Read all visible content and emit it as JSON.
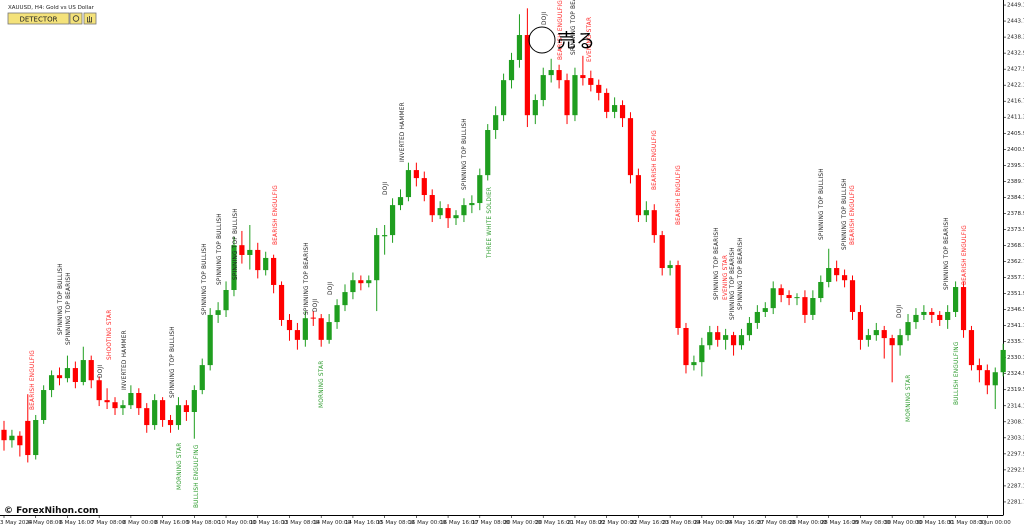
{
  "chart_data": {
    "type": "candlestick",
    "symbol": "XAUUSD, H4:  Gold vs US Dollar",
    "button_label": "DETECTOR",
    "watermark": "© ForexNihon.com",
    "signal_label": "売る",
    "up_color": "#1f9e1f",
    "down_color": "#ff0000",
    "ylim": [
      2277.3,
      2450.8
    ],
    "yticks": [
      {
        "value": 2449.1,
        "label": "2449.10"
      },
      {
        "value": 2443.7,
        "label": "2443.70"
      },
      {
        "value": 2438.3,
        "label": "2438.30"
      },
      {
        "value": 2432.9,
        "label": "2432.90"
      },
      {
        "value": 2427.5,
        "label": "2427.50"
      },
      {
        "value": 2422.1,
        "label": "2422.10"
      },
      {
        "value": 2416.7,
        "label": "2416.70"
      },
      {
        "value": 2411.3,
        "label": "2411.30"
      },
      {
        "value": 2405.9,
        "label": "2405.90"
      },
      {
        "value": 2400.5,
        "label": "2400.50"
      },
      {
        "value": 2395.1,
        "label": "2395.10"
      },
      {
        "value": 2389.7,
        "label": "2389.70"
      },
      {
        "value": 2384.3,
        "label": "2384.30"
      },
      {
        "value": 2378.9,
        "label": "2378.90"
      },
      {
        "value": 2373.5,
        "label": "2373.50"
      },
      {
        "value": 2368.1,
        "label": "2368.10"
      },
      {
        "value": 2362.7,
        "label": "2362.70"
      },
      {
        "value": 2357.3,
        "label": "2357.30"
      },
      {
        "value": 2351.9,
        "label": "2351.90"
      },
      {
        "value": 2346.5,
        "label": "2346.50"
      },
      {
        "value": 2341.1,
        "label": "2341.10"
      },
      {
        "value": 2335.7,
        "label": "2335.70"
      },
      {
        "value": 2330.3,
        "label": "2330.30"
      },
      {
        "value": 2324.9,
        "label": "2324.90"
      },
      {
        "value": 2319.5,
        "label": "2319.50"
      },
      {
        "value": 2314.1,
        "label": "2314.10"
      },
      {
        "value": 2308.7,
        "label": "2308.70"
      },
      {
        "value": 2303.3,
        "label": "2303.30"
      },
      {
        "value": 2297.9,
        "label": "2297.90"
      },
      {
        "value": 2292.5,
        "label": "2292.50"
      },
      {
        "value": 2287.1,
        "label": "2287.10"
      },
      {
        "value": 2281.7,
        "label": "2281.70"
      }
    ],
    "time_labels": [
      "3 May 2024",
      "6 May 08:00",
      "6 May 16:00",
      "7 May 08:00",
      "8 May 00:00",
      "8 May 16:00",
      "9 May 08:00",
      "10 May 00:00",
      "10 May 16:00",
      "13 May 08:00",
      "14 May 00:00",
      "14 May 16:00",
      "15 May 08:00",
      "16 May 00:00",
      "16 May 16:00",
      "17 May 08:00",
      "20 May 00:00",
      "20 May 16:00",
      "21 May 08:00",
      "22 May 00:00",
      "22 May 16:00",
      "23 May 08:00",
      "24 May 00:00",
      "24 May 16:00",
      "27 May 08:00",
      "28 May 00:00",
      "28 May 16:00",
      "29 May 08:00",
      "30 May 00:00",
      "30 May 16:00",
      "31 May 08:00",
      "3 Jun 00:00"
    ],
    "ohlc": [
      [
        2306,
        2309,
        2299,
        2302.5
      ],
      [
        2302.5,
        2306,
        2300,
        2304
      ],
      [
        2304,
        2305.5,
        2297,
        2300.8
      ],
      [
        2309,
        2318,
        2295,
        2297.5
      ],
      [
        2297.5,
        2311,
        2296,
        2309.3
      ],
      [
        2309.3,
        2321,
        2308,
        2319.4
      ],
      [
        2319.4,
        2326,
        2317,
        2324.4
      ],
      [
        2324.4,
        2327,
        2321,
        2323.4
      ],
      [
        2323.4,
        2331,
        2322,
        2326.8
      ],
      [
        2326.8,
        2329,
        2320,
        2322.1
      ],
      [
        2322.1,
        2334,
        2321,
        2329.5
      ],
      [
        2329.5,
        2331,
        2320,
        2322.7
      ],
      [
        2322.7,
        2324,
        2314,
        2316
      ],
      [
        2316,
        2320,
        2313,
        2315.3
      ],
      [
        2315.3,
        2317,
        2311,
        2313.3
      ],
      [
        2313.3,
        2316,
        2311,
        2314.3
      ],
      [
        2314.3,
        2321,
        2313,
        2318.4
      ],
      [
        2318.4,
        2320,
        2311,
        2313.3
      ],
      [
        2313.3,
        2315,
        2305,
        2307.6
      ],
      [
        2307.6,
        2318,
        2306,
        2316
      ],
      [
        2316,
        2317,
        2307,
        2309.3
      ],
      [
        2309.3,
        2311,
        2305,
        2307.6
      ],
      [
        2307.6,
        2317,
        2306,
        2314.3
      ],
      [
        2314.3,
        2316,
        2309,
        2312
      ],
      [
        2312,
        2321,
        2303,
        2319.4
      ],
      [
        2319.4,
        2330,
        2318,
        2327.8
      ],
      [
        2327.8,
        2347,
        2326,
        2344.7
      ],
      [
        2344.7,
        2349,
        2342,
        2346.3
      ],
      [
        2346.3,
        2356,
        2344,
        2353.1
      ],
      [
        2353.1,
        2371,
        2351,
        2368.2
      ],
      [
        2368.2,
        2373,
        2362,
        2364.9
      ],
      [
        2364.9,
        2375,
        2360,
        2366.6
      ],
      [
        2366.6,
        2369,
        2357,
        2359.8
      ],
      [
        2359.8,
        2366,
        2358,
        2363.9
      ],
      [
        2363.9,
        2365,
        2352,
        2354.8
      ],
      [
        2354.8,
        2356,
        2341,
        2343
      ],
      [
        2343,
        2345,
        2336,
        2339.6
      ],
      [
        2339.6,
        2342,
        2333,
        2336.3
      ],
      [
        2336.3,
        2346,
        2334,
        2343.6
      ],
      [
        2343.8,
        2346,
        2341,
        2343.6
      ],
      [
        2343.6,
        2345,
        2334,
        2336.3
      ],
      [
        2336.3,
        2345,
        2335,
        2342.3
      ],
      [
        2342.3,
        2350,
        2340,
        2348
      ],
      [
        2348,
        2355,
        2346,
        2352.4
      ],
      [
        2352.4,
        2359,
        2350,
        2356.4
      ],
      [
        2356.4,
        2358,
        2353,
        2355.4
      ],
      [
        2355.4,
        2358,
        2354,
        2356.4
      ],
      [
        2356.4,
        2374,
        2346,
        2371.6
      ],
      [
        2371.2,
        2375,
        2365,
        2371.6
      ],
      [
        2371.6,
        2384,
        2369,
        2381.7
      ],
      [
        2381.7,
        2387,
        2380,
        2384.4
      ],
      [
        2384.4,
        2396,
        2383,
        2393.5
      ],
      [
        2393.5,
        2396,
        2388,
        2390.8
      ],
      [
        2390.8,
        2393,
        2383,
        2385.1
      ],
      [
        2385.1,
        2387,
        2376,
        2378.3
      ],
      [
        2378.3,
        2383,
        2377,
        2380.7
      ],
      [
        2380.7,
        2382,
        2374,
        2377.3
      ],
      [
        2377.3,
        2380,
        2375,
        2378.3
      ],
      [
        2378.3,
        2384,
        2376,
        2381.7
      ],
      [
        2381.7,
        2385,
        2379,
        2382.4
      ],
      [
        2382.4,
        2394,
        2380,
        2391.8
      ],
      [
        2391.8,
        2409,
        2390,
        2407
      ],
      [
        2407,
        2415,
        2404,
        2412
      ],
      [
        2412,
        2426,
        2410,
        2423.8
      ],
      [
        2423.8,
        2433,
        2421,
        2430.6
      ],
      [
        2430.6,
        2446,
        2428,
        2439
      ],
      [
        2439,
        2448,
        2408,
        2412
      ],
      [
        2412,
        2419,
        2409,
        2417.1
      ],
      [
        2417.1,
        2428,
        2415,
        2425.5
      ],
      [
        2425.5,
        2431,
        2423,
        2427.2
      ],
      [
        2427.2,
        2429,
        2421,
        2423.8
      ],
      [
        2423.8,
        2426,
        2409,
        2412
      ],
      [
        2412,
        2428,
        2410,
        2425.5
      ],
      [
        2425.5,
        2432,
        2422,
        2424.5
      ],
      [
        2424.5,
        2427,
        2420,
        2422.2
      ],
      [
        2422.2,
        2424,
        2417,
        2419.5
      ],
      [
        2419.5,
        2421,
        2411,
        2413.1
      ],
      [
        2413.1,
        2418,
        2411,
        2415.4
      ],
      [
        2415.4,
        2417,
        2408,
        2411
      ],
      [
        2411,
        2413,
        2389,
        2391.8
      ],
      [
        2391.8,
        2394,
        2376,
        2378.3
      ],
      [
        2378.3,
        2383,
        2376,
        2380
      ],
      [
        2380,
        2382,
        2369,
        2371.6
      ],
      [
        2371.6,
        2373,
        2358,
        2360.5
      ],
      [
        2360.5,
        2363,
        2358,
        2361.5
      ],
      [
        2361.5,
        2363,
        2338,
        2340.3
      ],
      [
        2340.3,
        2342,
        2325,
        2327.8
      ],
      [
        2327.8,
        2331,
        2326,
        2328.8
      ],
      [
        2328.8,
        2337,
        2324,
        2334.5
      ],
      [
        2334.5,
        2341,
        2333,
        2338.9
      ],
      [
        2338.9,
        2341,
        2334,
        2336.3
      ],
      [
        2336.3,
        2340,
        2333,
        2337.9
      ],
      [
        2337.9,
        2339,
        2331,
        2334.5
      ],
      [
        2334.5,
        2340,
        2333,
        2337.9
      ],
      [
        2337.9,
        2344,
        2336,
        2342
      ],
      [
        2342,
        2348,
        2340,
        2345.7
      ],
      [
        2345.7,
        2349,
        2344,
        2347
      ],
      [
        2347,
        2356,
        2345,
        2353.7
      ],
      [
        2353.7,
        2355,
        2349,
        2351.4
      ],
      [
        2351.4,
        2353,
        2348,
        2350.4
      ],
      [
        2350.4,
        2352,
        2348,
        2350.7
      ],
      [
        2350.7,
        2353,
        2342,
        2344.7
      ],
      [
        2344.7,
        2353,
        2343,
        2350.4
      ],
      [
        2350.4,
        2358,
        2349,
        2355.8
      ],
      [
        2355.8,
        2367,
        2354,
        2360.5
      ],
      [
        2360.5,
        2363,
        2356,
        2358.1
      ],
      [
        2358.1,
        2360,
        2354,
        2356.4
      ],
      [
        2356.4,
        2358,
        2343,
        2345.7
      ],
      [
        2345.7,
        2348,
        2333,
        2336.3
      ],
      [
        2336.3,
        2340,
        2334,
        2337.9
      ],
      [
        2337.9,
        2342,
        2336,
        2339.6
      ],
      [
        2339.6,
        2341,
        2330,
        2336.9
      ],
      [
        2336.9,
        2338,
        2322,
        2334.5
      ],
      [
        2334.5,
        2340,
        2331,
        2337.9
      ],
      [
        2337.9,
        2345,
        2336,
        2342.3
      ],
      [
        2342.3,
        2347,
        2340,
        2344.7
      ],
      [
        2344.7,
        2348,
        2343,
        2345.7
      ],
      [
        2345.7,
        2347,
        2342,
        2344.7
      ],
      [
        2344.7,
        2346,
        2341,
        2343
      ],
      [
        2343,
        2348,
        2340,
        2345.7
      ],
      [
        2345.7,
        2356,
        2344,
        2354.1
      ],
      [
        2354.1,
        2356,
        2337,
        2339.6
      ],
      [
        2339.6,
        2341,
        2326,
        2327.8
      ],
      [
        2327.8,
        2330,
        2322,
        2326.1
      ],
      [
        2326.1,
        2328,
        2318,
        2321
      ],
      [
        2321,
        2327,
        2313,
        2325.4
      ],
      [
        2325.4,
        2335,
        2324,
        2332.9
      ]
    ],
    "patterns": [
      {
        "text": "BEARISH ENGULFIG",
        "color": "#ff2222"
      },
      {
        "text": "SPINNING TOP BULLISH",
        "color": "#222222"
      },
      {
        "text": "SPINNING TOP BEARISH",
        "color": "#222222"
      },
      {
        "text": "SHOOTING STAR",
        "color": "#ff2222"
      },
      {
        "text": "DOJI",
        "color": "#222222"
      },
      {
        "text": "INVERTED HAMMER",
        "color": "#222222"
      },
      {
        "text": "SPINNING TOP BULLISH",
        "color": "#222222"
      },
      {
        "text": "MORNING STAR",
        "color": "#2a9a2a"
      },
      {
        "text": "BULLISH ENGULFING",
        "color": "#2a9a2a"
      },
      {
        "text": "SPINNING TOP BULLISH",
        "color": "#222222"
      },
      {
        "text": "SPINNING TOP BULLISH",
        "color": "#222222"
      },
      {
        "text": "SPINNING TOP BULLISH",
        "color": "#222222"
      },
      {
        "text": "BEARISH ENGULFIG",
        "color": "#ff2222"
      },
      {
        "text": "SPINNING TOP BEARISH",
        "color": "#222222"
      },
      {
        "text": "DOJI",
        "color": "#222222"
      },
      {
        "text": "DOJI",
        "color": "#222222"
      },
      {
        "text": "MORNING STAR",
        "color": "#2a9a2a"
      },
      {
        "text": "DOJI",
        "color": "#222222"
      },
      {
        "text": "INVERTED HAMMER",
        "color": "#222222"
      },
      {
        "text": "SPINNING TOP BULLISH",
        "color": "#222222"
      },
      {
        "text": "THREE WHITE SOLDIER",
        "color": "#2a9a2a"
      },
      {
        "text": "DOJI",
        "color": "#222222"
      },
      {
        "text": "BEARISH ENGULFIG",
        "color": "#ff2222"
      },
      {
        "text": "SPINNING TOP BEARISH",
        "color": "#222222"
      },
      {
        "text": "EVENING STAR",
        "color": "#ff2222"
      },
      {
        "text": "BEARISH ENGULFIG",
        "color": "#ff2222"
      },
      {
        "text": "BEARISH ENGULFIG",
        "color": "#ff2222"
      },
      {
        "text": "SPINNING TOP BEARISH",
        "color": "#222222"
      },
      {
        "text": "EVENING STAR",
        "color": "#ff2222"
      },
      {
        "text": "SPINNING TOP BEARISH",
        "color": "#222222"
      },
      {
        "text": "SPINNING TOP BEARISH",
        "color": "#222222"
      },
      {
        "text": "SPINNING TOP BULLISH",
        "color": "#222222"
      },
      {
        "text": "SPINNING TOP BULLISH",
        "color": "#222222"
      },
      {
        "text": "BEARISH ENGULFIG",
        "color": "#ff2222"
      },
      {
        "text": "DOJI",
        "color": "#222222"
      },
      {
        "text": "MORNING STAR",
        "color": "#2a9a2a"
      },
      {
        "text": "SPINNING TOP BEARISH",
        "color": "#222222"
      },
      {
        "text": "BULLISH ENGULFING",
        "color": "#2a9a2a"
      },
      {
        "text": "BEARISH ENGULFIG",
        "color": "#ff2222"
      }
    ]
  }
}
